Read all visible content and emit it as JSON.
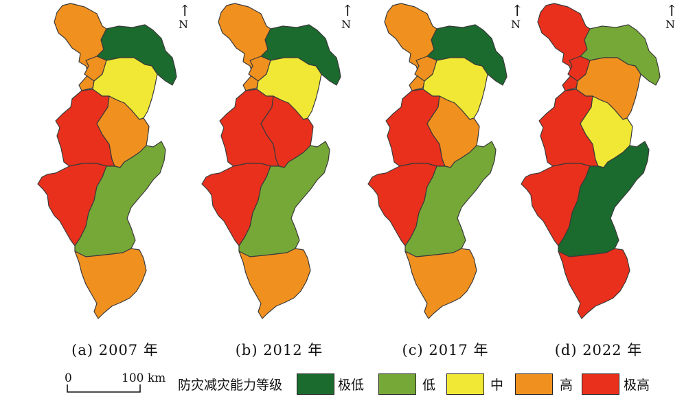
{
  "north_label": "N",
  "panels": [
    {
      "caption": "(a) 2007 年",
      "levels": {
        "r1": "高",
        "r2": "极低",
        "r3": "高",
        "r4": "中",
        "r5": "极高",
        "r6": "高",
        "r7": "极高",
        "r8": "低",
        "r9": "高"
      }
    },
    {
      "caption": "(b) 2012 年",
      "levels": {
        "r1": "高",
        "r2": "极低",
        "r3": "高",
        "r4": "中",
        "r5": "极高",
        "r6": "极高",
        "r7": "极高",
        "r8": "低",
        "r9": "高"
      }
    },
    {
      "caption": "(c) 2017 年",
      "levels": {
        "r1": "高",
        "r2": "极低",
        "r3": "高",
        "r4": "中",
        "r5": "极高",
        "r6": "高",
        "r7": "极高",
        "r8": "低",
        "r9": "高"
      }
    },
    {
      "caption": "(d) 2022 年",
      "levels": {
        "r1": "极高",
        "r2": "低",
        "r3": "极高",
        "r4": "高",
        "r5": "极高",
        "r6": "中",
        "r7": "极高",
        "r8": "极低",
        "r9": "极高"
      }
    }
  ],
  "legend": {
    "title": "防灾减灾能力等级",
    "items": [
      {
        "label": "极低",
        "color": "#1b6a2e"
      },
      {
        "label": "低",
        "color": "#76a837"
      },
      {
        "label": "中",
        "color": "#f0e834"
      },
      {
        "label": "高",
        "color": "#f0901f"
      },
      {
        "label": "极高",
        "color": "#e8301c"
      }
    ]
  },
  "scalebar": {
    "zero": "0",
    "max_label": "100 km"
  }
}
